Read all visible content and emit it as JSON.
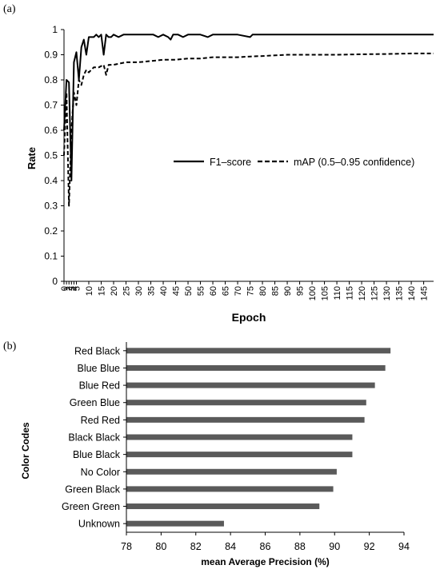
{
  "panels": {
    "a_label": "(a)",
    "b_label": "(b)"
  },
  "chart_data": [
    {
      "type": "line",
      "xlabel": "Epoch",
      "ylabel": "Rate",
      "xlim": [
        0,
        149
      ],
      "ylim": [
        0,
        1
      ],
      "xticks": [
        0,
        1,
        2,
        3,
        4,
        5,
        10,
        15,
        20,
        25,
        30,
        35,
        40,
        45,
        50,
        55,
        60,
        65,
        70,
        75,
        80,
        85,
        90,
        95,
        100,
        105,
        110,
        115,
        120,
        125,
        130,
        135,
        140,
        145
      ],
      "yticks": [
        "0",
        "0.1",
        "0.2",
        "0.3",
        "0.4",
        "0.5",
        "0.6",
        "0.7",
        "0.8",
        "0.9",
        "1"
      ],
      "grid": false,
      "legend": "middle-right",
      "series": [
        {
          "name": "F1–score",
          "style": "solid",
          "x": [
            0,
            1,
            2,
            3,
            4,
            5,
            6,
            7,
            8,
            9,
            10,
            11,
            12,
            13,
            14,
            15,
            16,
            17,
            18,
            19,
            20,
            22,
            24,
            26,
            28,
            30,
            33,
            36,
            38,
            40,
            42,
            43,
            44,
            46,
            48,
            50,
            52,
            55,
            58,
            60,
            65,
            70,
            75,
            76,
            80,
            85,
            90,
            95,
            100,
            110,
            120,
            130,
            140,
            145,
            149
          ],
          "y": [
            0.6,
            0.8,
            0.79,
            0.4,
            0.87,
            0.91,
            0.8,
            0.93,
            0.96,
            0.9,
            0.97,
            0.97,
            0.97,
            0.98,
            0.97,
            0.98,
            0.9,
            0.98,
            0.97,
            0.97,
            0.98,
            0.97,
            0.98,
            0.98,
            0.98,
            0.98,
            0.98,
            0.98,
            0.97,
            0.98,
            0.97,
            0.96,
            0.98,
            0.98,
            0.97,
            0.98,
            0.98,
            0.98,
            0.97,
            0.98,
            0.98,
            0.98,
            0.97,
            0.98,
            0.98,
            0.98,
            0.98,
            0.98,
            0.98,
            0.98,
            0.98,
            0.98,
            0.98,
            0.98,
            0.98
          ]
        },
        {
          "name": "mAP (0.5–0.95 confidence)",
          "style": "dashed",
          "x": [
            0,
            1,
            2,
            3,
            4,
            5,
            6,
            7,
            8,
            9,
            10,
            12,
            14,
            16,
            17,
            18,
            20,
            25,
            30,
            35,
            40,
            45,
            50,
            55,
            60,
            65,
            70,
            75,
            80,
            90,
            100,
            110,
            120,
            130,
            140,
            149
          ],
          "y": [
            0.5,
            0.75,
            0.3,
            0.6,
            0.75,
            0.7,
            0.8,
            0.78,
            0.82,
            0.84,
            0.83,
            0.85,
            0.85,
            0.86,
            0.82,
            0.86,
            0.86,
            0.87,
            0.87,
            0.875,
            0.88,
            0.88,
            0.885,
            0.885,
            0.89,
            0.89,
            0.89,
            0.893,
            0.895,
            0.9,
            0.9,
            0.9,
            0.902,
            0.903,
            0.905,
            0.905
          ]
        }
      ]
    },
    {
      "type": "bar",
      "orientation": "horizontal",
      "xlabel": "mean Average Precision (%)",
      "ylabel": "Color Codes",
      "xlim": [
        78,
        94
      ],
      "xticks": [
        "78",
        "80",
        "82",
        "84",
        "86",
        "88",
        "90",
        "92",
        "94"
      ],
      "categories": [
        "Red Black",
        "Blue Blue",
        "Blue Red",
        "Green Blue",
        "Red Red",
        "Black Black",
        "Blue Black",
        "No Color",
        "Green Black",
        "Green Green",
        "Unknown"
      ],
      "values": [
        93.2,
        92.9,
        92.3,
        91.8,
        91.7,
        91.0,
        91.0,
        90.1,
        89.9,
        89.1,
        83.6
      ],
      "bar_color": "#5a5a5a"
    }
  ]
}
